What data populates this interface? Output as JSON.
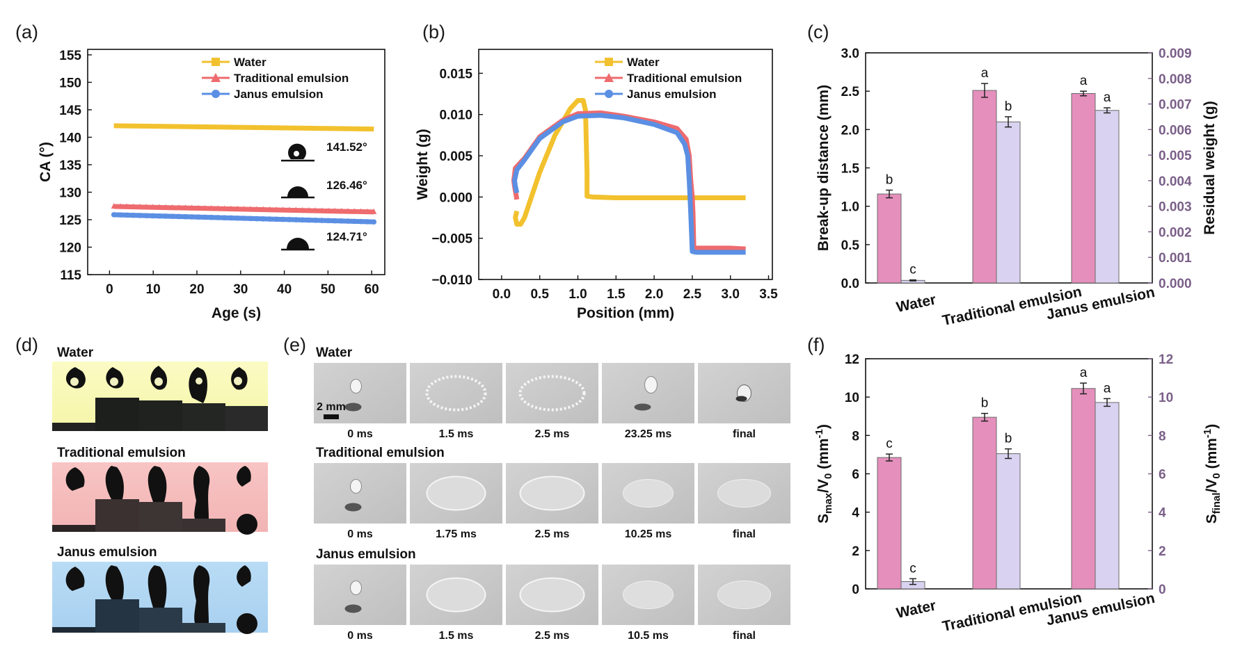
{
  "panel_labels": {
    "a": "(a)",
    "b": "(b)",
    "c": "(c)",
    "d": "(d)",
    "e": "(e)",
    "f": "(f)"
  },
  "colors": {
    "water": "#f2c12e",
    "traditional": "#ee6b6e",
    "janus": "#5b8fe3",
    "bar_left": "#e58fbc",
    "bar_right": "#d9d2f0",
    "right_axis": "#7a5f88"
  },
  "chart_data": [
    {
      "id": "a",
      "type": "line",
      "title": "",
      "xlabel": "Age (s)",
      "ylabel": "CA (°)",
      "xlim": [
        -5,
        63
      ],
      "ylim": [
        115,
        156
      ],
      "xticks": [
        0,
        10,
        20,
        30,
        40,
        50,
        60
      ],
      "yticks": [
        115,
        120,
        125,
        130,
        135,
        140,
        145,
        150,
        155
      ],
      "series": [
        {
          "name": "Water",
          "x": [
            1,
            60.5
          ],
          "y": [
            142.1,
            141.5
          ]
        },
        {
          "name": "Traditional emulsion",
          "x": [
            1,
            60.5
          ],
          "y": [
            127.4,
            126.4
          ]
        },
        {
          "name": "Janus emulsion",
          "x": [
            1,
            60.5
          ],
          "y": [
            125.9,
            124.6
          ]
        }
      ],
      "annotations": [
        "141.52°",
        "126.46°",
        "124.71°"
      ],
      "legend": "top-right"
    },
    {
      "id": "b",
      "type": "line",
      "title": "",
      "xlabel": "Position (mm)",
      "ylabel": "Weight (g)",
      "xlim": [
        -0.3,
        3.55
      ],
      "ylim": [
        -0.01,
        0.0179
      ],
      "xticks": [
        0.0,
        0.5,
        1.0,
        1.5,
        2.0,
        2.5,
        3.0,
        3.5
      ],
      "yticks": [
        -0.01,
        -0.005,
        0.0,
        0.005,
        0.01,
        0.015
      ],
      "xtick_labels": [
        "0.0",
        "0.5",
        "1.0",
        "1.5",
        "2.0",
        "2.5",
        "3.0",
        "3.5"
      ],
      "ytick_labels": [
        "−0.010",
        "−0.005",
        "0.000",
        "0.005",
        "0.010",
        "0.015"
      ],
      "series": [
        {
          "name": "Water",
          "x": [
            0.2,
            0.18,
            0.2,
            0.25,
            0.3,
            0.5,
            0.7,
            0.9,
            1.0,
            1.07,
            1.1,
            1.12,
            1.12,
            1.2,
            1.5,
            2.0,
            2.5,
            3.0,
            3.2
          ],
          "y": [
            -0.0017,
            -0.0025,
            -0.0033,
            -0.0033,
            -0.0025,
            0.003,
            0.0075,
            0.0107,
            0.0117,
            0.0117,
            0.0105,
            0.003,
            0.0001,
            0.0,
            -0.0001,
            -0.0001,
            -0.0001,
            -0.0001,
            -0.0001
          ]
        },
        {
          "name": "Traditional emulsion",
          "x": [
            0.2,
            0.17,
            0.16,
            0.18,
            0.3,
            0.5,
            0.8,
            1.0,
            1.3,
            1.6,
            2.0,
            2.3,
            2.42,
            2.46,
            2.48,
            2.5,
            2.51,
            2.52,
            2.55,
            3.0,
            3.2
          ],
          "y": [
            -0.0003,
            0.0013,
            0.002,
            0.0035,
            0.0047,
            0.0073,
            0.0093,
            0.0101,
            0.0102,
            0.0098,
            0.0091,
            0.0083,
            0.007,
            0.005,
            0.002,
            0.0,
            -0.002,
            -0.0062,
            -0.0062,
            -0.0062,
            -0.0063
          ]
        },
        {
          "name": "Janus emulsion",
          "x": [
            0.2,
            0.18,
            0.17,
            0.2,
            0.3,
            0.5,
            0.8,
            1.0,
            1.3,
            1.6,
            2.0,
            2.3,
            2.4,
            2.44,
            2.46,
            2.47,
            2.48,
            2.5,
            2.55,
            3.0,
            3.2
          ],
          "y": [
            0.0005,
            0.0013,
            0.002,
            0.0033,
            0.0045,
            0.0071,
            0.0091,
            0.0098,
            0.0099,
            0.0096,
            0.0088,
            0.0078,
            0.0064,
            0.005,
            0.002,
            0.0,
            -0.002,
            -0.0066,
            -0.0067,
            -0.0067,
            -0.0067
          ]
        }
      ],
      "legend": "top-right"
    },
    {
      "id": "c",
      "type": "bar",
      "title": "",
      "categories": [
        "Water",
        "Traditional emulsion",
        "Janus emulsion"
      ],
      "ylabel": "Break-up distance (mm)",
      "ylabel_right": "Residual weight (g)",
      "ylim": [
        0,
        3.0
      ],
      "ylim_right": [
        0,
        0.009
      ],
      "yticks": [
        0.0,
        0.5,
        1.0,
        1.5,
        2.0,
        2.5,
        3.0
      ],
      "ytick_labels": [
        "0.0",
        "0.5",
        "1.0",
        "1.5",
        "2.0",
        "2.5",
        "3.0"
      ],
      "yticks_right": [
        0,
        0.001,
        0.002,
        0.003,
        0.004,
        0.005,
        0.006,
        0.007,
        0.008,
        0.009
      ],
      "ytick_labels_right": [
        "0.000",
        "0.001",
        "0.002",
        "0.003",
        "0.004",
        "0.005",
        "0.006",
        "0.007",
        "0.008",
        "0.009"
      ],
      "series": [
        {
          "name": "Break-up distance",
          "axis": "left",
          "values": [
            1.16,
            2.51,
            2.47
          ],
          "errors": [
            0.05,
            0.09,
            0.03
          ],
          "letters": [
            "b",
            "a",
            "a"
          ]
        },
        {
          "name": "Residual weight",
          "axis": "right",
          "values": [
            0.0001,
            0.0063,
            0.00675
          ],
          "errors": [
            2e-05,
            0.0002,
            0.0001
          ],
          "letters": [
            "c",
            "b",
            "a"
          ]
        }
      ]
    },
    {
      "id": "f",
      "type": "bar",
      "title": "",
      "categories": [
        "Water",
        "Traditional emulsion",
        "Janus emulsion"
      ],
      "ylabel_main": "S",
      "ylabel_sub": "max",
      "ylabel_mid": "/V",
      "ylabel_sub2": "0",
      "ylabel_unit": " (mm",
      "ylabel_sup": "-1",
      "ylabel_end": ")",
      "ylabel_right_main": "S",
      "ylabel_right_sub": "final",
      "ylim": [
        0,
        12
      ],
      "ylim_right": [
        0,
        12
      ],
      "yticks": [
        0,
        2,
        4,
        6,
        8,
        10,
        12
      ],
      "ytick_labels": [
        "0",
        "2",
        "4",
        "6",
        "8",
        "10",
        "12"
      ],
      "series": [
        {
          "name": "Smax/V0",
          "axis": "left",
          "values": [
            6.85,
            8.95,
            10.45
          ],
          "errors": [
            0.18,
            0.2,
            0.28
          ],
          "letters": [
            "c",
            "b",
            "a"
          ]
        },
        {
          "name": "Sfinal/V0",
          "axis": "right",
          "values": [
            0.38,
            7.05,
            9.72
          ],
          "errors": [
            0.15,
            0.25,
            0.2
          ],
          "letters": [
            "c",
            "b",
            "a"
          ]
        }
      ]
    }
  ],
  "panel_a": {
    "annotations": [
      "141.52°",
      "126.46°",
      "124.71°"
    ]
  },
  "panel_d": {
    "rows": [
      "Water",
      "Traditional emulsion",
      "Janus emulsion"
    ]
  },
  "panel_e": {
    "scale_bar": "2 mm",
    "rows": [
      {
        "title": "Water",
        "captions": [
          "0 ms",
          "1.5 ms",
          "2.5 ms",
          "23.25 ms",
          "final"
        ]
      },
      {
        "title": "Traditional emulsion",
        "captions": [
          "0 ms",
          "1.75 ms",
          "2.5 ms",
          "10.25 ms",
          "final"
        ]
      },
      {
        "title": "Janus emulsion",
        "captions": [
          "0 ms",
          "1.5 ms",
          "2.5 ms",
          "10.5 ms",
          "final"
        ]
      }
    ]
  }
}
